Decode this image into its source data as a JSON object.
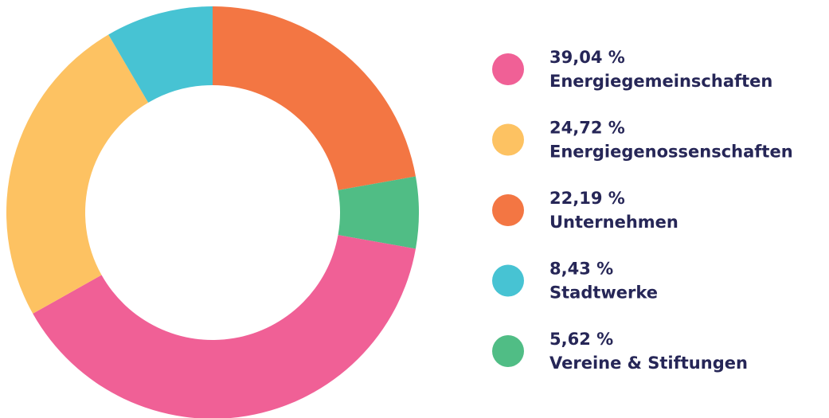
{
  "chart_data": {
    "type": "donut",
    "categories": [
      "Unternehmen",
      "Vereine & Stiftungen",
      "Energiegemeinschaften",
      "Energiegenossenschaften",
      "Stadtwerke"
    ],
    "values": [
      22.19,
      5.62,
      39.04,
      24.72,
      8.43
    ],
    "value_labels": [
      "22,19 %",
      "5,62 %",
      "39,04 %",
      "24,72 %",
      "8,43 %"
    ],
    "colors": [
      "#f37643",
      "#50bd85",
      "#f06096",
      "#fdc262",
      "#47c3d3"
    ],
    "legend": "right"
  }
}
